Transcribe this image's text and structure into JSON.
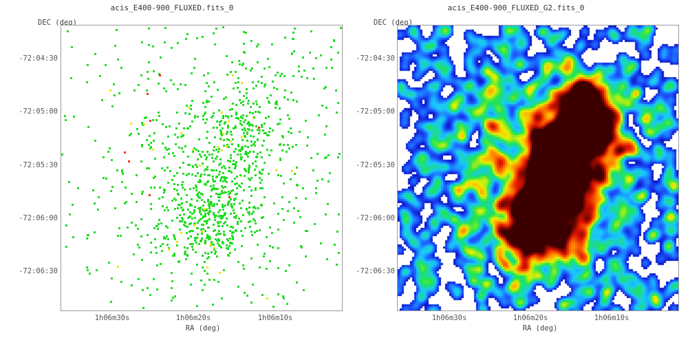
{
  "panels": [
    {
      "title": "acis_E400-900_FLUXED.fits_0",
      "dec_label": "DEC (deg)",
      "ra_label": "RA (deg)",
      "dec_ticks": [
        "-72:04:30",
        "-72:05:00",
        "-72:05:30",
        "-72:06:00",
        "-72:06:30"
      ],
      "ra_ticks": [
        "1h06m30s",
        "1h06m20s",
        "1h06m10s"
      ],
      "colors": {
        "low": "#22dd22",
        "mid": "#f5e000",
        "high": "#ff2a00"
      }
    },
    {
      "title": "acis_E400-900_FLUXED_G2.fits_0",
      "dec_label": "DEC (deg)",
      "ra_label": "RA (deg)",
      "dec_ticks": [
        "-72:04:30",
        "-72:05:00",
        "-72:05:30",
        "-72:06:00",
        "-72:06:30"
      ],
      "ra_ticks": [
        "1h06m30s",
        "1h06m20s",
        "1h06m10s"
      ],
      "colormap": [
        "#0a14c8",
        "#1e5aff",
        "#19c8ff",
        "#1ee650",
        "#f0f000",
        "#ff8200",
        "#e11400",
        "#3c0000"
      ]
    }
  ]
}
